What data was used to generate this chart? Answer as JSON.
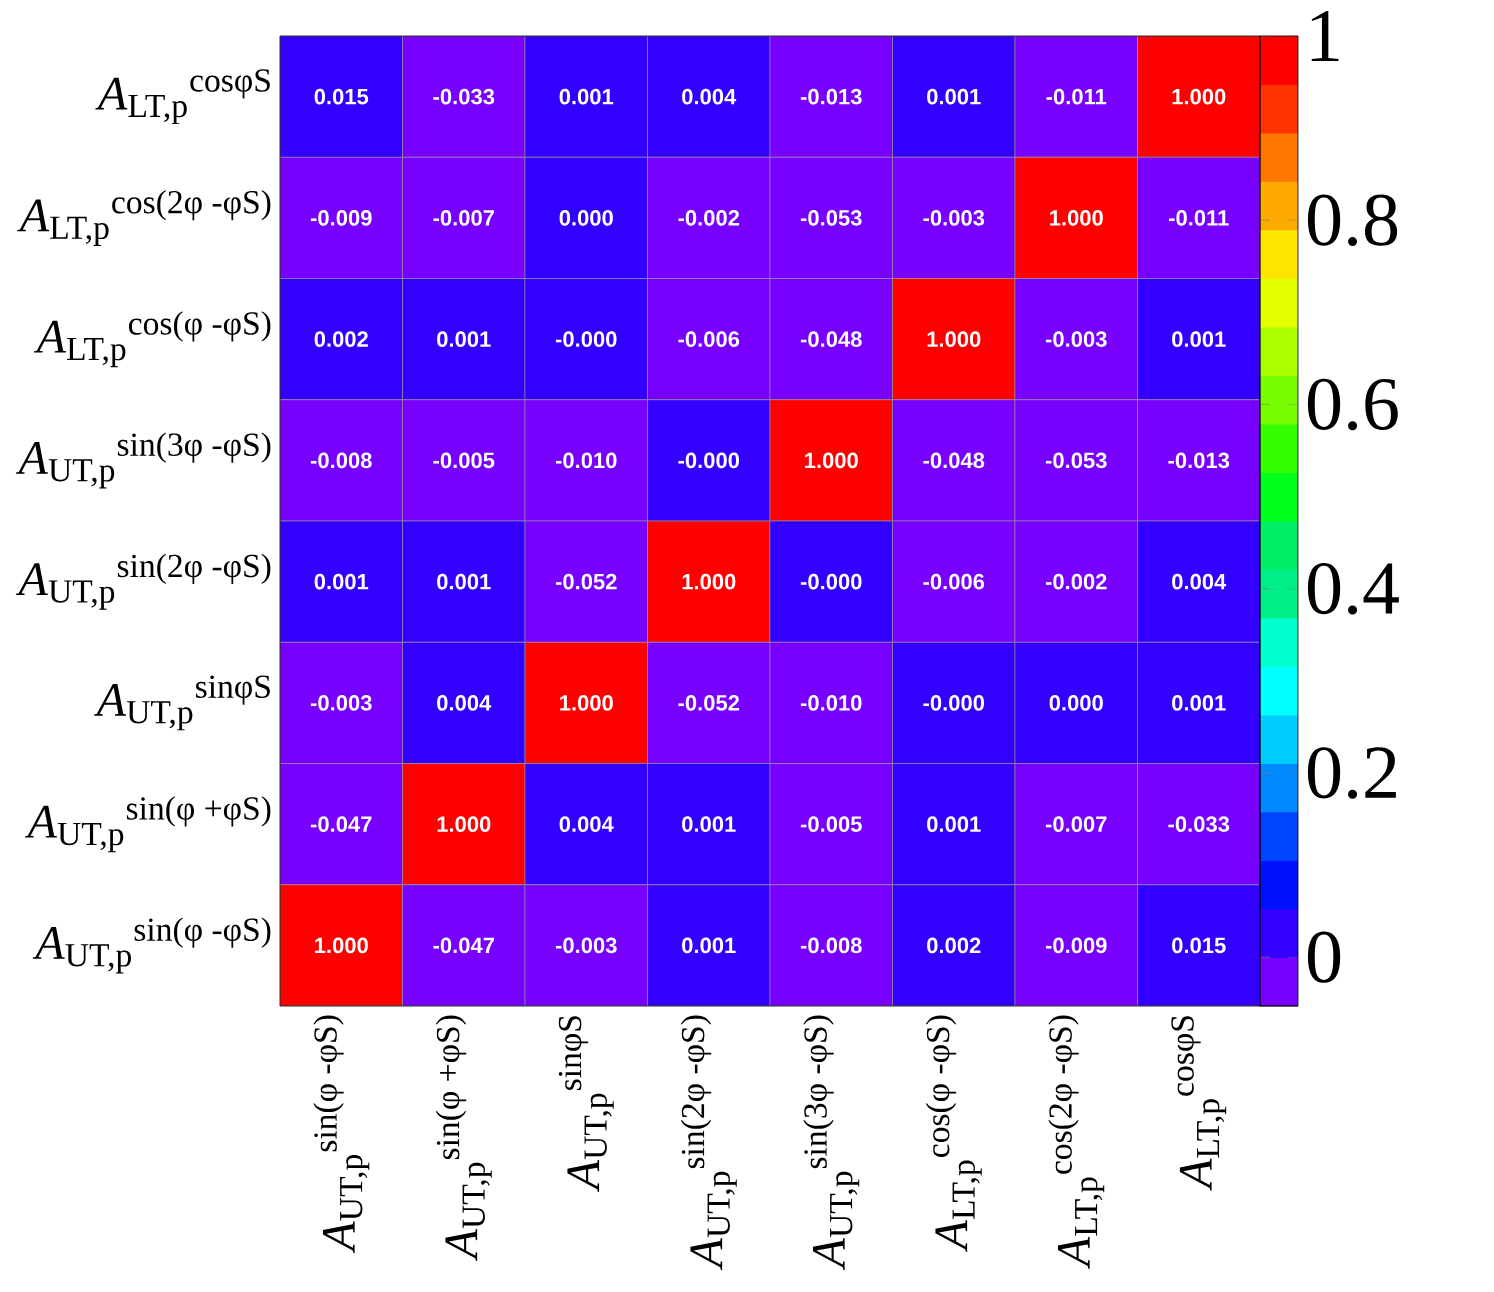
{
  "chart_data": {
    "type": "heatmap",
    "categories": [
      "*A*$_{UT,p}$$^{sin(φ -φS)}$",
      "*A*$_{UT,p}$$^{sin(φ +φS)}$",
      "*A*$_{UT,p}$$^{sinφS}$",
      "*A*$_{UT,p}$$^{sin(2φ -φS)}$",
      "*A*$_{UT,p}$$^{sin(3φ -φS)}$",
      "*A*$_{LT,p}$$^{cos(φ -φS)}$",
      "*A*$_{LT,p}$$^{cos(2φ -φS)}$",
      "*A*$_{LT,p}$$^{cosφS}$"
    ],
    "y_categories": [
      "*A*$_{LT,p}$$^{cosφS}$",
      "*A*$_{LT,p}$$^{cos(2φ -φS)}$",
      "*A*$_{LT,p}$$^{cos(φ -φS)}$",
      "*A*$_{UT,p}$$^{sin(3φ -φS)}$",
      "*A*$_{UT,p}$$^{sin(2φ -φS)}$",
      "*A*$_{UT,p}$$^{sinφS}$",
      "*A*$_{UT,p}$$^{sin(φ +φS)}$",
      "*A*$_{UT,p}$$^{sin(φ -φS)}$"
    ],
    "cells": [
      [
        0.015,
        -0.033,
        0.001,
        0.004,
        -0.013,
        0.001,
        -0.011,
        1.0
      ],
      [
        -0.009,
        -0.007,
        0.0,
        -0.002,
        -0.053,
        -0.003,
        1.0,
        -0.011
      ],
      [
        0.002,
        0.001,
        0.0,
        -0.006,
        -0.048,
        1.0,
        -0.003,
        0.001
      ],
      [
        -0.008,
        -0.005,
        -0.01,
        0.0,
        1.0,
        -0.048,
        -0.053,
        -0.013
      ],
      [
        0.001,
        0.001,
        -0.052,
        1.0,
        0.0,
        -0.006,
        -0.002,
        0.004
      ],
      [
        -0.003,
        0.004,
        1.0,
        -0.052,
        -0.01,
        0.0,
        0.0,
        0.001
      ],
      [
        -0.047,
        1.0,
        0.004,
        0.001,
        -0.005,
        0.001,
        -0.007,
        -0.033
      ],
      [
        1.0,
        -0.047,
        -0.003,
        0.001,
        -0.008,
        0.002,
        -0.009,
        0.015
      ]
    ],
    "cell_labels": [
      [
        "0.015",
        "-0.033",
        "0.001",
        "0.004",
        "-0.013",
        "0.001",
        "-0.011",
        "1.000"
      ],
      [
        "-0.009",
        "-0.007",
        "0.000",
        "-0.002",
        "-0.053",
        "-0.003",
        "1.000",
        "-0.011"
      ],
      [
        "0.002",
        "0.001",
        "-0.000",
        "-0.006",
        "-0.048",
        "1.000",
        "-0.003",
        "0.001"
      ],
      [
        "-0.008",
        "-0.005",
        "-0.010",
        "-0.000",
        "1.000",
        "-0.048",
        "-0.053",
        "-0.013"
      ],
      [
        "0.001",
        "0.001",
        "-0.052",
        "1.000",
        "-0.000",
        "-0.006",
        "-0.002",
        "0.004"
      ],
      [
        "-0.003",
        "0.004",
        "1.000",
        "-0.052",
        "-0.010",
        "-0.000",
        "0.000",
        "0.001"
      ],
      [
        "-0.047",
        "1.000",
        "0.004",
        "0.001",
        "-0.005",
        "0.001",
        "-0.007",
        "-0.033"
      ],
      [
        "1.000",
        "-0.047",
        "-0.003",
        "0.001",
        "-0.008",
        "0.002",
        "-0.009",
        "0.015"
      ]
    ],
    "clim": [
      -0.053,
      1
    ],
    "cticks": [
      0,
      0.2,
      0.4,
      0.6,
      0.8,
      1
    ]
  }
}
